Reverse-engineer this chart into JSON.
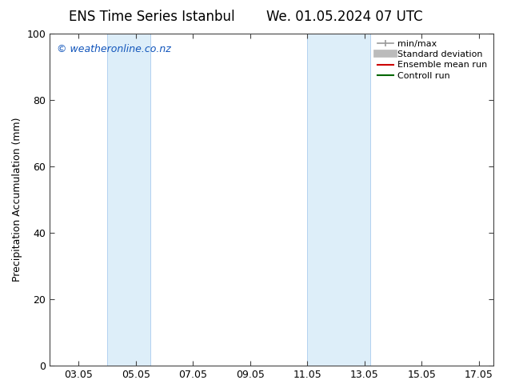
{
  "title1": "ENS Time Series Istanbul",
  "title2": "We. 01.05.2024 07 UTC",
  "ylabel": "Precipitation Accumulation (mm)",
  "ylim": [
    0,
    100
  ],
  "yticks": [
    0,
    20,
    40,
    60,
    80,
    100
  ],
  "xtick_labels": [
    "03.05",
    "05.05",
    "07.05",
    "09.05",
    "11.05",
    "13.05",
    "15.05",
    "17.05"
  ],
  "xtick_positions": [
    3,
    5,
    7,
    9,
    11,
    13,
    15,
    17
  ],
  "xlim": [
    2.0,
    17.5
  ],
  "shaded_bands": [
    {
      "x_start": 4.0,
      "x_end": 5.5
    },
    {
      "x_start": 11.0,
      "x_end": 13.2
    }
  ],
  "band_color": "#ddeef9",
  "band_edge_color": "#aaccee",
  "watermark_text": "© weatheronline.co.nz",
  "watermark_color": "#1155bb",
  "legend_items": [
    {
      "label": "min/max",
      "type": "minmax",
      "color": "#999999"
    },
    {
      "label": "Standard deviation",
      "type": "stddev",
      "color": "#bbbbbb"
    },
    {
      "label": "Ensemble mean run",
      "type": "line",
      "color": "#cc0000"
    },
    {
      "label": "Controll run",
      "type": "line",
      "color": "#006600"
    }
  ],
  "bg_color": "#ffffff",
  "title_fontsize": 12,
  "axis_label_fontsize": 9,
  "tick_fontsize": 9,
  "watermark_fontsize": 9
}
